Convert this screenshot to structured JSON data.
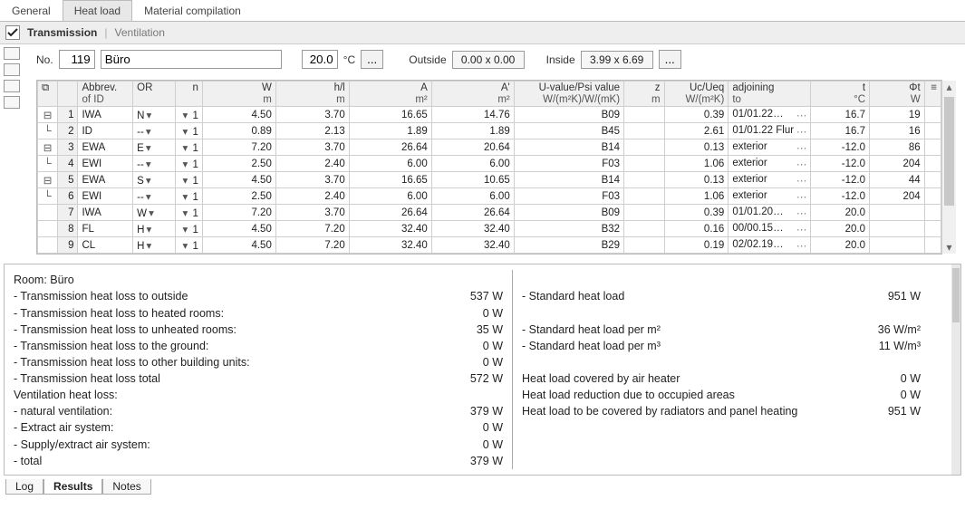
{
  "tabs": {
    "general": "General",
    "heat_load": "Heat load",
    "material": "Material compilation",
    "active": "Heat load"
  },
  "subhead": {
    "transmission": "Transmission",
    "ventilation": "Ventilation"
  },
  "params": {
    "no_label": "No.",
    "no_value": "119",
    "name_value": "Büro",
    "temp_value": "20.0",
    "temp_unit": "°C",
    "outside_label": "Outside",
    "outside_value": "0.00 x 0.00",
    "inside_label": "Inside",
    "inside_value": "3.99 x 6.69"
  },
  "headers": {
    "abbrev": "Abbrev.\nof ID",
    "or": "OR",
    "n": "n",
    "W_top": "W",
    "W_bot": "m",
    "hl_top": "h/l",
    "hl_bot": "m",
    "A_top": "A",
    "A_bot": "m²",
    "Ap_top": "A'",
    "Ap_bot": "m²",
    "u_top": "U-value/Psi value",
    "u_bot": "W/(m²K)/W/(mK)",
    "z_top": "z",
    "z_bot": "m",
    "uc_top": "Uc/Ueq",
    "uc_bot": "W/(m²K)",
    "adj_top": "adjoining",
    "adj_bot": "to",
    "t_top": "t",
    "t_bot": "°C",
    "phi_top": "Φt",
    "phi_bot": "W"
  },
  "rows": [
    {
      "tree": "⊟",
      "idx": "1",
      "abbr": "IWA",
      "or": "N",
      "n": "1",
      "W": "4.50",
      "hl": "3.70",
      "A": "16.65",
      "Ap": "14.76",
      "U": "B09",
      "z": "",
      "Uc": "0.39",
      "adj": "01/01.22…",
      "t": "16.7",
      "phi": "19"
    },
    {
      "tree": "└",
      "idx": "2",
      "abbr": "ID",
      "or": "--",
      "n": "1",
      "W": "0.89",
      "hl": "2.13",
      "A": "1.89",
      "Ap": "1.89",
      "U": "B45",
      "z": "",
      "Uc": "2.61",
      "adj": "01/01.22 Flur",
      "t": "16.7",
      "phi": "16"
    },
    {
      "tree": "⊟",
      "idx": "3",
      "abbr": "EWA",
      "or": "E",
      "n": "1",
      "W": "7.20",
      "hl": "3.70",
      "A": "26.64",
      "Ap": "20.64",
      "U": "B14",
      "z": "",
      "Uc": "0.13",
      "adj": "exterior",
      "t": "-12.0",
      "phi": "86"
    },
    {
      "tree": "└",
      "idx": "4",
      "abbr": "EWI",
      "or": "--",
      "n": "1",
      "W": "2.50",
      "hl": "2.40",
      "A": "6.00",
      "Ap": "6.00",
      "U": "F03",
      "z": "",
      "Uc": "1.06",
      "adj": "exterior",
      "t": "-12.0",
      "phi": "204"
    },
    {
      "tree": "⊟",
      "idx": "5",
      "abbr": "EWA",
      "or": "S",
      "n": "1",
      "W": "4.50",
      "hl": "3.70",
      "A": "16.65",
      "Ap": "10.65",
      "U": "B14",
      "z": "",
      "Uc": "0.13",
      "adj": "exterior",
      "t": "-12.0",
      "phi": "44"
    },
    {
      "tree": "└",
      "idx": "6",
      "abbr": "EWI",
      "or": "--",
      "n": "1",
      "W": "2.50",
      "hl": "2.40",
      "A": "6.00",
      "Ap": "6.00",
      "U": "F03",
      "z": "",
      "Uc": "1.06",
      "adj": "exterior",
      "t": "-12.0",
      "phi": "204"
    },
    {
      "tree": "",
      "idx": "7",
      "abbr": "IWA",
      "or": "W",
      "n": "1",
      "W": "7.20",
      "hl": "3.70",
      "A": "26.64",
      "Ap": "26.64",
      "U": "B09",
      "z": "",
      "Uc": "0.39",
      "adj": "01/01.20…",
      "t": "20.0",
      "phi": ""
    },
    {
      "tree": "",
      "idx": "8",
      "abbr": "FL",
      "or": "H",
      "n": "1",
      "W": "4.50",
      "hl": "7.20",
      "A": "32.40",
      "Ap": "32.40",
      "U": "B32",
      "z": "",
      "Uc": "0.16",
      "adj": "00/00.15…",
      "t": "20.0",
      "phi": ""
    },
    {
      "tree": "",
      "idx": "9",
      "abbr": "CL",
      "or": "H",
      "n": "1",
      "W": "4.50",
      "hl": "7.20",
      "A": "32.40",
      "Ap": "32.40",
      "U": "B29",
      "z": "",
      "Uc": "0.19",
      "adj": "02/02.19…",
      "t": "20.0",
      "phi": ""
    }
  ],
  "summary_left": [
    {
      "label": "Room: Büro",
      "val": ""
    },
    {
      "label": "- Transmission heat loss to outside",
      "val": "537 W"
    },
    {
      "label": "- Transmission heat loss to heated rooms:",
      "val": "0 W"
    },
    {
      "label": "- Transmission heat loss to unheated rooms:",
      "val": "35 W"
    },
    {
      "label": "- Transmission heat loss to the ground:",
      "val": "0 W"
    },
    {
      "label": "- Transmission heat loss to other building units:",
      "val": "0 W"
    },
    {
      "label": "- Transmission heat loss total",
      "val": "572 W"
    },
    {
      "label": "Ventilation heat loss:",
      "val": ""
    },
    {
      "label": "- natural ventilation:",
      "val": "379 W"
    },
    {
      "label": "- Extract air system:",
      "val": "0 W"
    },
    {
      "label": "- Supply/extract air system:",
      "val": "0 W"
    },
    {
      "label": "- total",
      "val": "379 W"
    }
  ],
  "summary_right": [
    {
      "label": "",
      "val": ""
    },
    {
      "label": "- Standard heat load",
      "val": "951 W"
    },
    {
      "label": "",
      "val": ""
    },
    {
      "label": "- Standard heat load per m²",
      "val": "36 W/m²"
    },
    {
      "label": "- Standard heat load per m³",
      "val": "11 W/m³"
    },
    {
      "label": "",
      "val": ""
    },
    {
      "label": "Heat load covered by air heater",
      "val": "0 W"
    },
    {
      "label": "Heat load reduction due to occupied areas",
      "val": "0 W"
    },
    {
      "label": "Heat load to be covered by radiators and panel heating",
      "val": "951 W"
    }
  ],
  "bottom_tabs": {
    "log": "Log",
    "results": "Results",
    "notes": "Notes"
  },
  "colors": {
    "active_tab_bg": "#e8e8e8",
    "grid_header_bg": "#f0f0f0"
  }
}
